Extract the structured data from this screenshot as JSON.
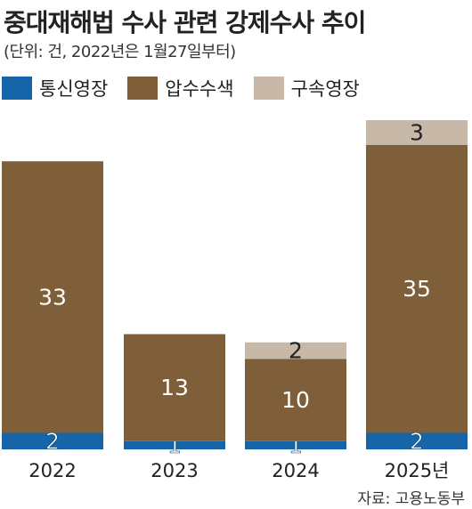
{
  "header": {
    "title": "중대재해법 수사 관련 강제수사 추이",
    "subtitle": "(단위: 건, 2022년은 1월27일부터)"
  },
  "source": "자료: 고용노동부",
  "colors": {
    "통신영장": "#1565a8",
    "압수수색": "#7f5f3a",
    "구속영장": "#c8b8a8"
  },
  "chart_data": {
    "type": "bar",
    "stacked": true,
    "categories": [
      "2022",
      "2023",
      "2024",
      "2025년"
    ],
    "series": [
      {
        "name": "통신영장",
        "values": [
          2,
          1,
          1,
          2
        ],
        "labels": [
          "2",
          "1",
          "1",
          "2"
        ]
      },
      {
        "name": "압수수색",
        "values": [
          33,
          13,
          10,
          35
        ],
        "labels": [
          "33",
          "13",
          "10",
          "35"
        ]
      },
      {
        "name": "구속영장",
        "values": [
          0,
          0,
          2,
          3
        ],
        "labels": [
          "",
          "",
          "2",
          "3"
        ]
      }
    ],
    "legend_position": "top-left",
    "grid": false
  }
}
